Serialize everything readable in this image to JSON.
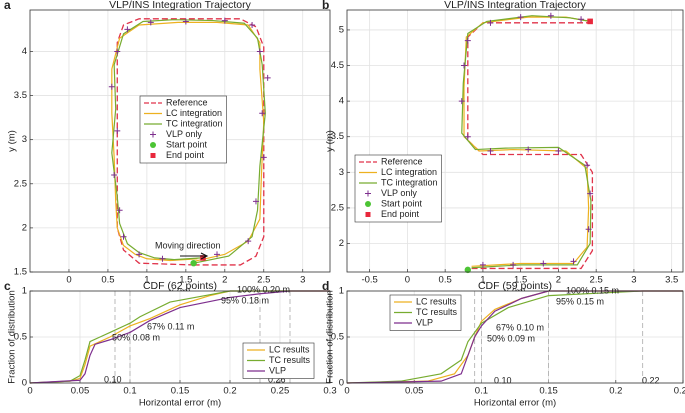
{
  "chart_data": [
    {
      "type": "line",
      "panel": "a",
      "title": "VLP/INS Integration Trajectory",
      "xlabel": "x (m)",
      "ylabel": "y (m)",
      "xlim": [
        -0.5,
        3.35
      ],
      "ylim": [
        1.5,
        4.47
      ],
      "xticks": [
        0,
        0.5,
        1,
        1.5,
        2,
        2.5,
        3
      ],
      "yticks": [
        1.5,
        2,
        2.5,
        3,
        3.5,
        4
      ],
      "grid": true,
      "annotations": [
        "Moving direction"
      ],
      "series": [
        {
          "name": "Reference",
          "color": "#e0334a",
          "style": "dashed",
          "x": [
            1.6,
            2.2,
            2.4,
            2.5,
            2.5,
            2.4,
            2.2,
            0.9,
            0.7,
            0.62,
            0.62,
            0.7,
            0.9,
            1.6
          ],
          "values": [
            1.58,
            1.58,
            1.68,
            1.9,
            4.05,
            4.28,
            4.37,
            4.37,
            4.3,
            4.1,
            2.0,
            1.75,
            1.6,
            1.58
          ]
        },
        {
          "name": "LC integration",
          "color": "#edb120",
          "style": "line",
          "x": [
            1.6,
            2.0,
            2.3,
            2.45,
            2.47,
            2.5,
            2.45,
            2.45,
            2.3,
            1.9,
            1.4,
            0.9,
            0.65,
            0.55,
            0.55,
            0.58,
            0.6,
            0.62,
            0.7,
            0.85,
            1.0,
            1.3,
            1.65
          ],
          "values": [
            1.62,
            1.7,
            1.85,
            2.1,
            2.6,
            3.2,
            3.8,
            4.1,
            4.3,
            4.33,
            4.33,
            4.3,
            4.15,
            3.8,
            3.3,
            2.8,
            2.3,
            2.0,
            1.8,
            1.7,
            1.65,
            1.63,
            1.65
          ]
        },
        {
          "name": "TC integration",
          "color": "#77ac30",
          "style": "line",
          "x": [
            1.6,
            2.05,
            2.35,
            2.42,
            2.45,
            2.52,
            2.48,
            2.42,
            2.25,
            1.85,
            1.35,
            0.95,
            0.7,
            0.58,
            0.6,
            0.55,
            0.62,
            0.65,
            0.75,
            0.9,
            1.1,
            1.35,
            1.7
          ],
          "values": [
            1.6,
            1.68,
            1.9,
            2.2,
            2.7,
            3.3,
            3.85,
            4.15,
            4.32,
            4.35,
            4.36,
            4.34,
            4.2,
            3.85,
            3.35,
            2.85,
            2.35,
            2.05,
            1.82,
            1.72,
            1.66,
            1.64,
            1.66
          ]
        },
        {
          "name": "VLP only",
          "color": "#7e2f8e",
          "style": "markers",
          "marker": "+",
          "x": [
            1.9,
            2.3,
            2.4,
            2.5,
            2.48,
            2.55,
            2.45,
            2.35,
            2.0,
            1.5,
            1.05,
            0.75,
            0.62,
            0.55,
            0.62,
            0.58,
            0.65,
            0.7,
            0.9,
            1.2
          ],
          "values": [
            1.7,
            1.85,
            2.3,
            2.8,
            3.3,
            3.7,
            4.0,
            4.3,
            4.35,
            4.34,
            4.33,
            4.25,
            4.0,
            3.6,
            3.1,
            2.6,
            2.2,
            1.9,
            1.7,
            1.65
          ]
        },
        {
          "name": "Start point",
          "color": "#4cc434",
          "style": "markers",
          "marker": "o",
          "x": [
            1.6
          ],
          "values": [
            1.6
          ]
        },
        {
          "name": "End point",
          "color": "#e8283c",
          "style": "markers",
          "marker": "s",
          "x": [
            1.72
          ],
          "values": [
            1.66
          ]
        }
      ]
    },
    {
      "type": "line",
      "panel": "b",
      "title": "VLP/INS Integration Trajectory",
      "xlabel": "x (m)",
      "ylabel": "y (m)",
      "xlim": [
        -0.8,
        3.65
      ],
      "ylim": [
        1.6,
        5.28
      ],
      "xticks": [
        -0.5,
        0,
        0.5,
        1,
        1.5,
        2,
        2.5,
        3,
        3.5
      ],
      "yticks": [
        2,
        2.5,
        3,
        3.5,
        4,
        4.5,
        5
      ],
      "grid": true,
      "series": [
        {
          "name": "Reference",
          "color": "#e0334a",
          "style": "dashed",
          "x": [
            0.85,
            2.3,
            2.45,
            2.45,
            2.3,
            1.0,
            0.8,
            0.8,
            1.0,
            2.42
          ],
          "values": [
            1.65,
            1.65,
            1.9,
            3.0,
            3.25,
            3.25,
            3.45,
            4.9,
            5.1,
            5.1
          ]
        },
        {
          "name": "LC integration",
          "color": "#edb120",
          "style": "line",
          "x": [
            0.85,
            1.5,
            2.2,
            2.38,
            2.4,
            2.38,
            2.1,
            1.4,
            0.95,
            0.75,
            0.75,
            0.78,
            1.0,
            1.6,
            2.1,
            2.42
          ],
          "values": [
            1.68,
            1.72,
            1.72,
            1.95,
            2.5,
            3.05,
            3.3,
            3.32,
            3.3,
            3.5,
            4.2,
            4.9,
            5.1,
            5.18,
            5.18,
            5.12
          ]
        },
        {
          "name": "TC integration",
          "color": "#77ac30",
          "style": "line",
          "x": [
            0.85,
            1.5,
            2.25,
            2.42,
            2.43,
            2.35,
            2.0,
            1.3,
            0.9,
            0.72,
            0.74,
            0.8,
            1.05,
            1.65,
            2.15,
            2.42
          ],
          "values": [
            1.66,
            1.7,
            1.7,
            2.0,
            2.6,
            3.1,
            3.35,
            3.34,
            3.32,
            3.55,
            4.25,
            4.95,
            5.12,
            5.2,
            5.17,
            5.12
          ]
        },
        {
          "name": "VLP only",
          "color": "#7e2f8e",
          "style": "markers",
          "marker": "+",
          "x": [
            1.0,
            1.4,
            1.8,
            2.2,
            2.4,
            2.42,
            2.38,
            2.0,
            1.6,
            1.1,
            0.8,
            0.72,
            0.75,
            0.8,
            1.1,
            1.5,
            1.9,
            2.3
          ],
          "values": [
            1.7,
            1.7,
            1.72,
            1.75,
            2.2,
            2.7,
            3.1,
            3.3,
            3.32,
            3.3,
            3.5,
            4.0,
            4.5,
            4.85,
            5.1,
            5.18,
            5.2,
            5.15
          ]
        },
        {
          "name": "Start point",
          "color": "#4cc434",
          "style": "markers",
          "marker": "o",
          "x": [
            0.8
          ],
          "values": [
            1.63
          ]
        },
        {
          "name": "End point",
          "color": "#e8283c",
          "style": "markers",
          "marker": "s",
          "x": [
            2.42
          ],
          "values": [
            5.12
          ]
        }
      ]
    },
    {
      "type": "line",
      "panel": "c",
      "title": "CDF (62 points)",
      "xlabel": "Horizontal error (m)",
      "ylabel": "Fraction of distribution",
      "xlim": [
        0,
        0.3
      ],
      "ylim": [
        0,
        1
      ],
      "xticks": [
        0,
        0.05,
        0.1,
        0.15,
        0.2,
        0.25,
        0.3
      ],
      "yticks": [
        0,
        0.5,
        1
      ],
      "grid": true,
      "vlines": [
        0.085,
        0.1,
        0.23,
        0.26
      ],
      "annotations": [
        "100% 0.20 m",
        "95% 0.18 m",
        "67% 0.11 m",
        "50% 0.08 m",
        "0.10",
        "0.26"
      ],
      "series": [
        {
          "name": "LC results",
          "color": "#edb120",
          "style": "line",
          "x": [
            0,
            0.04,
            0.05,
            0.055,
            0.06,
            0.07,
            0.08,
            0.1,
            0.12,
            0.15,
            0.18,
            0.2,
            0.3
          ],
          "values": [
            0,
            0.02,
            0.05,
            0.2,
            0.4,
            0.45,
            0.5,
            0.62,
            0.7,
            0.85,
            0.95,
            1,
            1
          ]
        },
        {
          "name": "TC results",
          "color": "#77ac30",
          "style": "line",
          "x": [
            0,
            0.04,
            0.05,
            0.055,
            0.06,
            0.07,
            0.08,
            0.1,
            0.11,
            0.14,
            0.18,
            0.2,
            0.3
          ],
          "values": [
            0,
            0.02,
            0.08,
            0.25,
            0.45,
            0.5,
            0.55,
            0.65,
            0.72,
            0.88,
            0.96,
            1,
            1
          ]
        },
        {
          "name": "VLP",
          "color": "#7e2f8e",
          "style": "line",
          "x": [
            0,
            0.05,
            0.055,
            0.06,
            0.065,
            0.08,
            0.1,
            0.12,
            0.15,
            0.2,
            0.23,
            0.26,
            0.3
          ],
          "values": [
            0,
            0.03,
            0.1,
            0.3,
            0.42,
            0.47,
            0.55,
            0.68,
            0.82,
            0.93,
            0.97,
            1,
            1
          ]
        }
      ]
    },
    {
      "type": "line",
      "panel": "d",
      "title": "CDF (59 points)",
      "xlabel": "Horizontal error (m)",
      "ylabel": "Fraction of distribution",
      "xlim": [
        0,
        0.25
      ],
      "ylim": [
        0,
        1
      ],
      "xticks": [
        0,
        0.05,
        0.1,
        0.15,
        0.2,
        0.25
      ],
      "yticks": [
        0,
        0.5,
        1
      ],
      "grid": true,
      "vlines": [
        0.095,
        0.1,
        0.15,
        0.22
      ],
      "annotations": [
        "100% 0.15 m",
        "95% 0.15 m",
        "67% 0.10 m",
        "50% 0.09 m",
        "0.10",
        "0.22"
      ],
      "series": [
        {
          "name": "LC results",
          "color": "#edb120",
          "style": "line",
          "x": [
            0,
            0.06,
            0.08,
            0.09,
            0.095,
            0.1,
            0.11,
            0.13,
            0.15,
            0.25
          ],
          "values": [
            0,
            0.02,
            0.1,
            0.3,
            0.5,
            0.67,
            0.8,
            0.92,
            1,
            1
          ]
        },
        {
          "name": "TC results",
          "color": "#77ac30",
          "style": "line",
          "x": [
            0,
            0.04,
            0.07,
            0.085,
            0.09,
            0.1,
            0.12,
            0.15,
            0.22,
            0.25
          ],
          "values": [
            0,
            0.02,
            0.1,
            0.25,
            0.45,
            0.65,
            0.82,
            0.95,
            1,
            1
          ]
        },
        {
          "name": "VLP",
          "color": "#7e2f8e",
          "style": "line",
          "x": [
            0,
            0.07,
            0.085,
            0.09,
            0.095,
            0.1,
            0.11,
            0.13,
            0.15,
            0.25
          ],
          "values": [
            0,
            0.02,
            0.1,
            0.3,
            0.5,
            0.62,
            0.78,
            0.92,
            1,
            1
          ]
        }
      ]
    }
  ]
}
